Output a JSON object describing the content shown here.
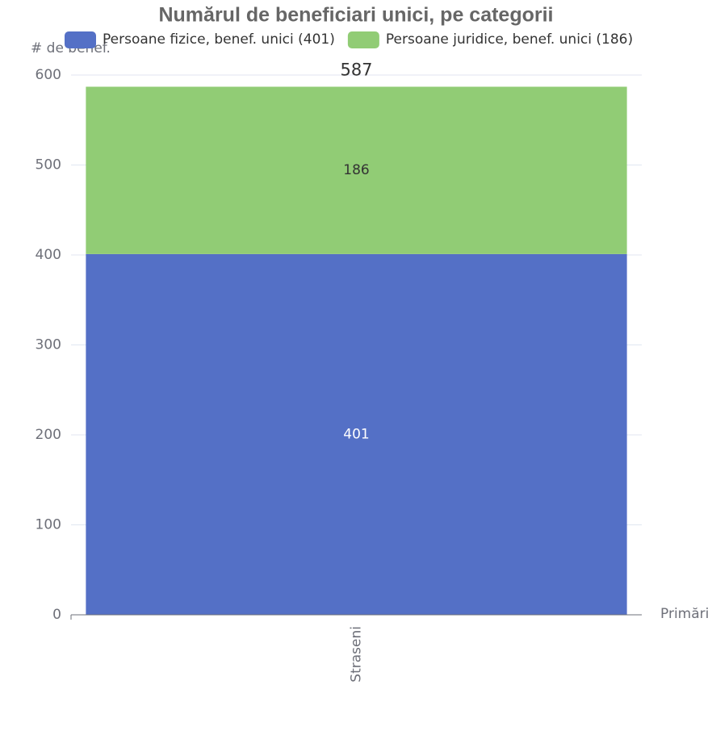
{
  "chart_data": {
    "type": "stacked_bar",
    "title": "Numărul de beneficiari unici, pe categorii",
    "y_label": "# de benef.",
    "x_label": "Primări",
    "categories": [
      "Straseni"
    ],
    "series": [
      {
        "name": "Persoane fizice, benef. unici (401)",
        "color": "#5470c6",
        "values": [
          401
        ]
      },
      {
        "name": "Persoane juridice, benef. unici (186)",
        "color": "#91cc75",
        "values": [
          186
        ]
      }
    ],
    "totals": [
      587
    ],
    "ylim": [
      0,
      600
    ],
    "yticks": [
      0,
      100,
      200,
      300,
      400,
      500,
      600
    ],
    "grid": true
  }
}
